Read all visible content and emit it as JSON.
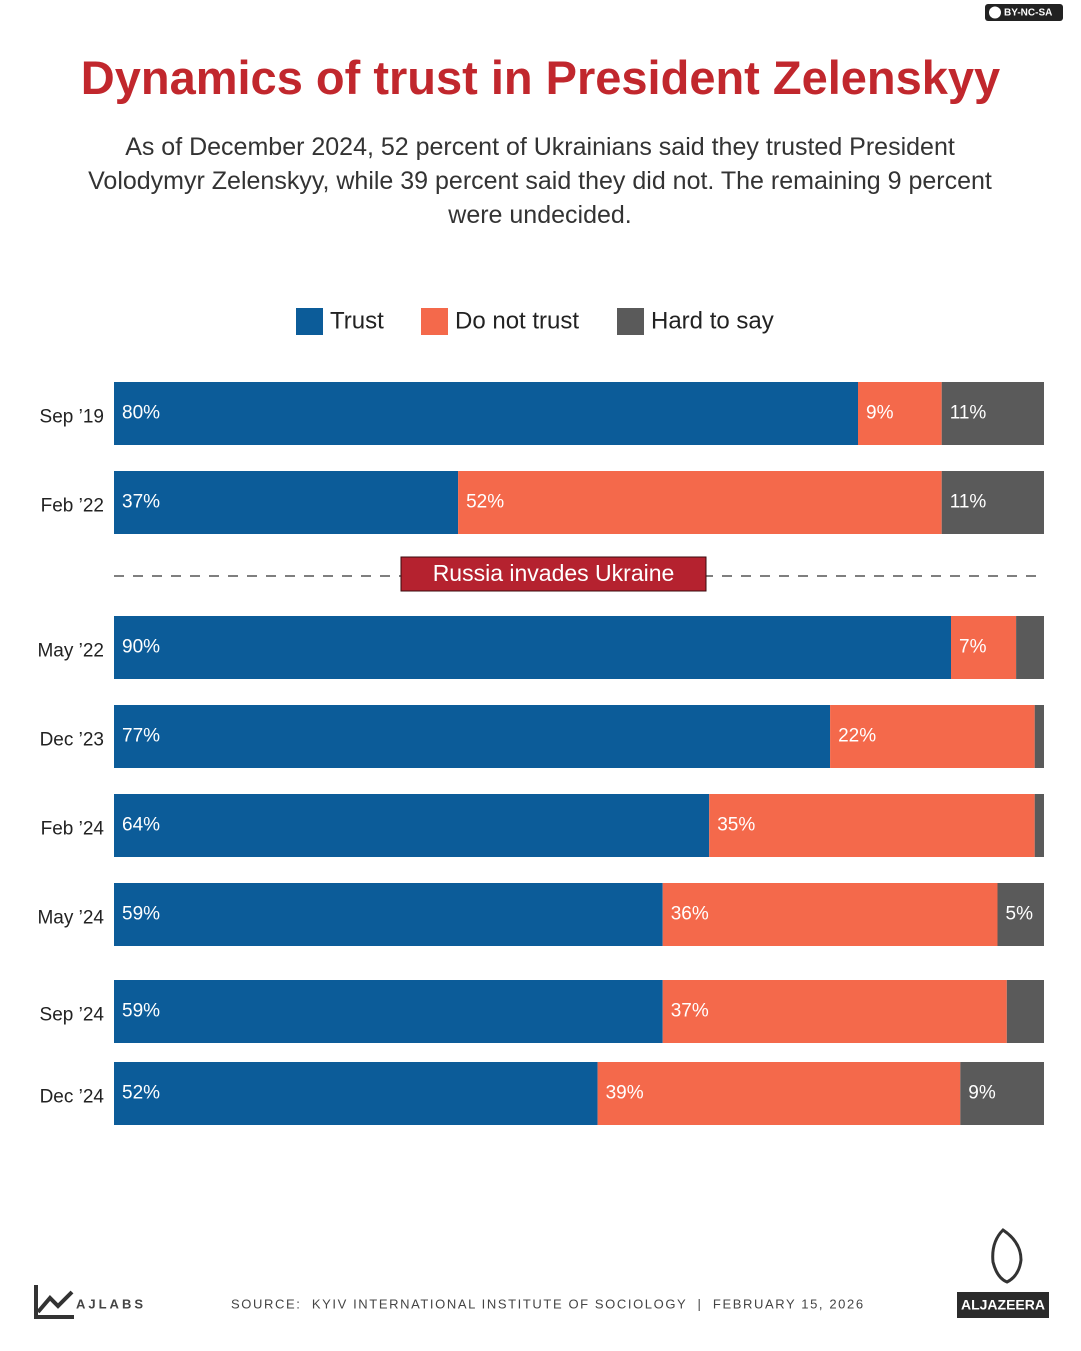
{
  "chart_data": {
    "type": "stacked-bar-horizontal",
    "title": "Dynamics of trust in President Zelenskyy",
    "subtitle": "As of December 2024, 52 percent of Ukrainians said they trusted President Volodymyr Zelenskyy, while 39 percent said they did not. The remaining 9 percent were undecided.",
    "categories": [
      "Sep ’19",
      "Feb ’22",
      "May ’22",
      "Dec ’23",
      "Feb ’24",
      "May ’24",
      "Sep ’24",
      "Dec ’24"
    ],
    "series": [
      {
        "name": "Trust",
        "color": "#0c5c99",
        "values": [
          80,
          37,
          90,
          77,
          64,
          59,
          59,
          52
        ],
        "value_labels": [
          "80%",
          "37%",
          "90%",
          "77%",
          "64%",
          "59%",
          "59%",
          "52%"
        ]
      },
      {
        "name": "Do not trust",
        "color": "#f4694b",
        "values": [
          9,
          52,
          7,
          22,
          35,
          36,
          37,
          39
        ],
        "value_labels": [
          "9%",
          "52%",
          "7%",
          "22%",
          "35%",
          "36%",
          "37%",
          "39%"
        ]
      },
      {
        "name": "Hard to say",
        "color": "#5a5a5a",
        "values": [
          11,
          11,
          3,
          1,
          1,
          5,
          4,
          9
        ],
        "value_labels": [
          "11%",
          "11%",
          null,
          null,
          null,
          "5%",
          null,
          "9%"
        ]
      }
    ],
    "xlim": [
      0,
      100
    ],
    "annotation": "Russia invades Ukraine",
    "source": "SOURCE:  KYIV INTERNATIONAL INSTITUTE OF SOCIOLOGY  |  FEBRUARY 15, 2026",
    "credit": "AJLABS",
    "publisher": "ALJAZEERA",
    "license": "BY-NC-SA"
  }
}
